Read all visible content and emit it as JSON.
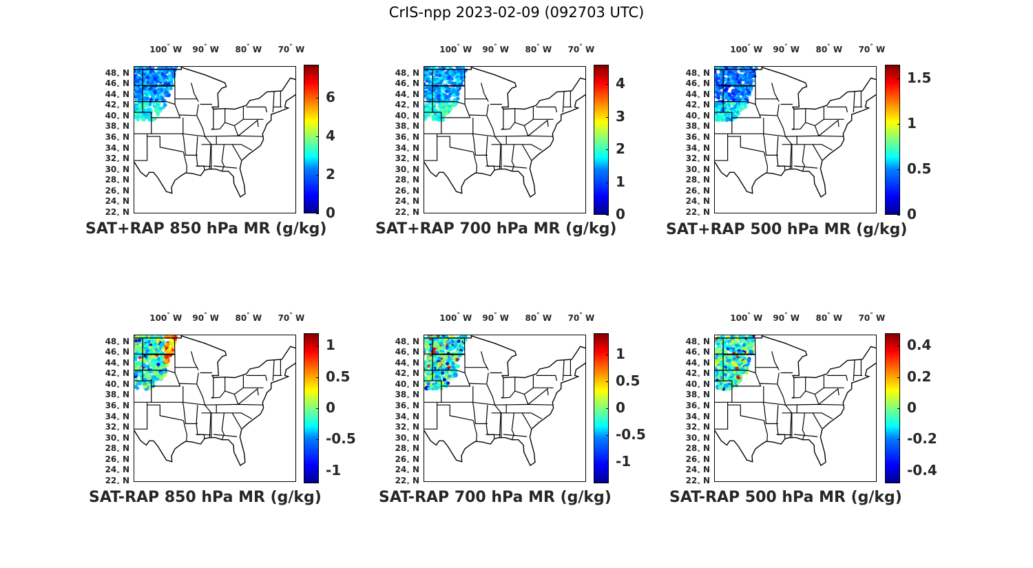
{
  "figure_title": "CrIS-npp 2023-02-09 (092703 UTC)",
  "lon_labels": [
    {
      "num": "100",
      "deg": "°",
      "dir": "W"
    },
    {
      "num": "90",
      "deg": "°",
      "dir": "W"
    },
    {
      "num": "80",
      "deg": "°",
      "dir": "W"
    },
    {
      "num": "70",
      "deg": "°",
      "dir": "W"
    }
  ],
  "lat_labels": [
    {
      "num": "48",
      "dir": "N"
    },
    {
      "num": "46",
      "dir": "N"
    },
    {
      "num": "44",
      "dir": "N"
    },
    {
      "num": "42",
      "dir": "N"
    },
    {
      "num": "40",
      "dir": "N"
    },
    {
      "num": "38",
      "dir": "N"
    },
    {
      "num": "36",
      "dir": "N"
    },
    {
      "num": "34",
      "dir": "N"
    },
    {
      "num": "32",
      "dir": "N"
    },
    {
      "num": "30",
      "dir": "N"
    },
    {
      "num": "28",
      "dir": "N"
    },
    {
      "num": "26",
      "dir": "N"
    },
    {
      "num": "24",
      "dir": "N"
    },
    {
      "num": "22",
      "dir": "N"
    }
  ],
  "map_extent": {
    "lon_min": -106,
    "lon_max": -68,
    "lat_min": 22,
    "lat_max": 49.5
  },
  "colormap": "jet",
  "panels": [
    {
      "title": "SAT+RAP 850 hPa MR (g/kg)",
      "cmin": 0,
      "cmax": 7.7,
      "ticks": [
        {
          "v": 0,
          "t": "0"
        },
        {
          "v": 2,
          "t": "2"
        },
        {
          "v": 4,
          "t": "4"
        },
        {
          "v": 6,
          "t": "6"
        }
      ]
    },
    {
      "title": "SAT+RAP 700 hPa MR (g/kg)",
      "cmin": 0,
      "cmax": 4.6,
      "ticks": [
        {
          "v": 0,
          "t": "0"
        },
        {
          "v": 1,
          "t": "1"
        },
        {
          "v": 2,
          "t": "2"
        },
        {
          "v": 3,
          "t": "3"
        },
        {
          "v": 4,
          "t": "4"
        }
      ]
    },
    {
      "title": "SAT+RAP 500 hPa MR (g/kg)",
      "cmin": 0,
      "cmax": 1.65,
      "ticks": [
        {
          "v": 0,
          "t": "0"
        },
        {
          "v": 0.5,
          "t": "0.5"
        },
        {
          "v": 1,
          "t": "1"
        },
        {
          "v": 1.5,
          "t": "1.5"
        }
      ]
    },
    {
      "title": "SAT-RAP 850 hPa MR (g/kg)",
      "cmin": -1.2,
      "cmax": 1.2,
      "ticks": [
        {
          "v": -1,
          "t": "-1"
        },
        {
          "v": -0.5,
          "t": "-0.5"
        },
        {
          "v": 0,
          "t": "0"
        },
        {
          "v": 0.5,
          "t": "0.5"
        },
        {
          "v": 1,
          "t": "1"
        }
      ]
    },
    {
      "title": "SAT-RAP 700 hPa MR (g/kg)",
      "cmin": -1.4,
      "cmax": 1.4,
      "ticks": [
        {
          "v": -1,
          "t": "-1"
        },
        {
          "v": -0.5,
          "t": "-0.5"
        },
        {
          "v": 0,
          "t": "0"
        },
        {
          "v": 0.5,
          "t": "0.5"
        },
        {
          "v": 1,
          "t": "1"
        }
      ]
    },
    {
      "title": "SAT-RAP 500 hPa MR (g/kg)",
      "cmin": -0.48,
      "cmax": 0.48,
      "ticks": [
        {
          "v": -0.4,
          "t": "-0.4"
        },
        {
          "v": -0.2,
          "t": "-0.2"
        },
        {
          "v": 0,
          "t": "0"
        },
        {
          "v": 0.2,
          "t": "0.2"
        },
        {
          "v": 0.4,
          "t": "0.4"
        }
      ]
    }
  ]
}
